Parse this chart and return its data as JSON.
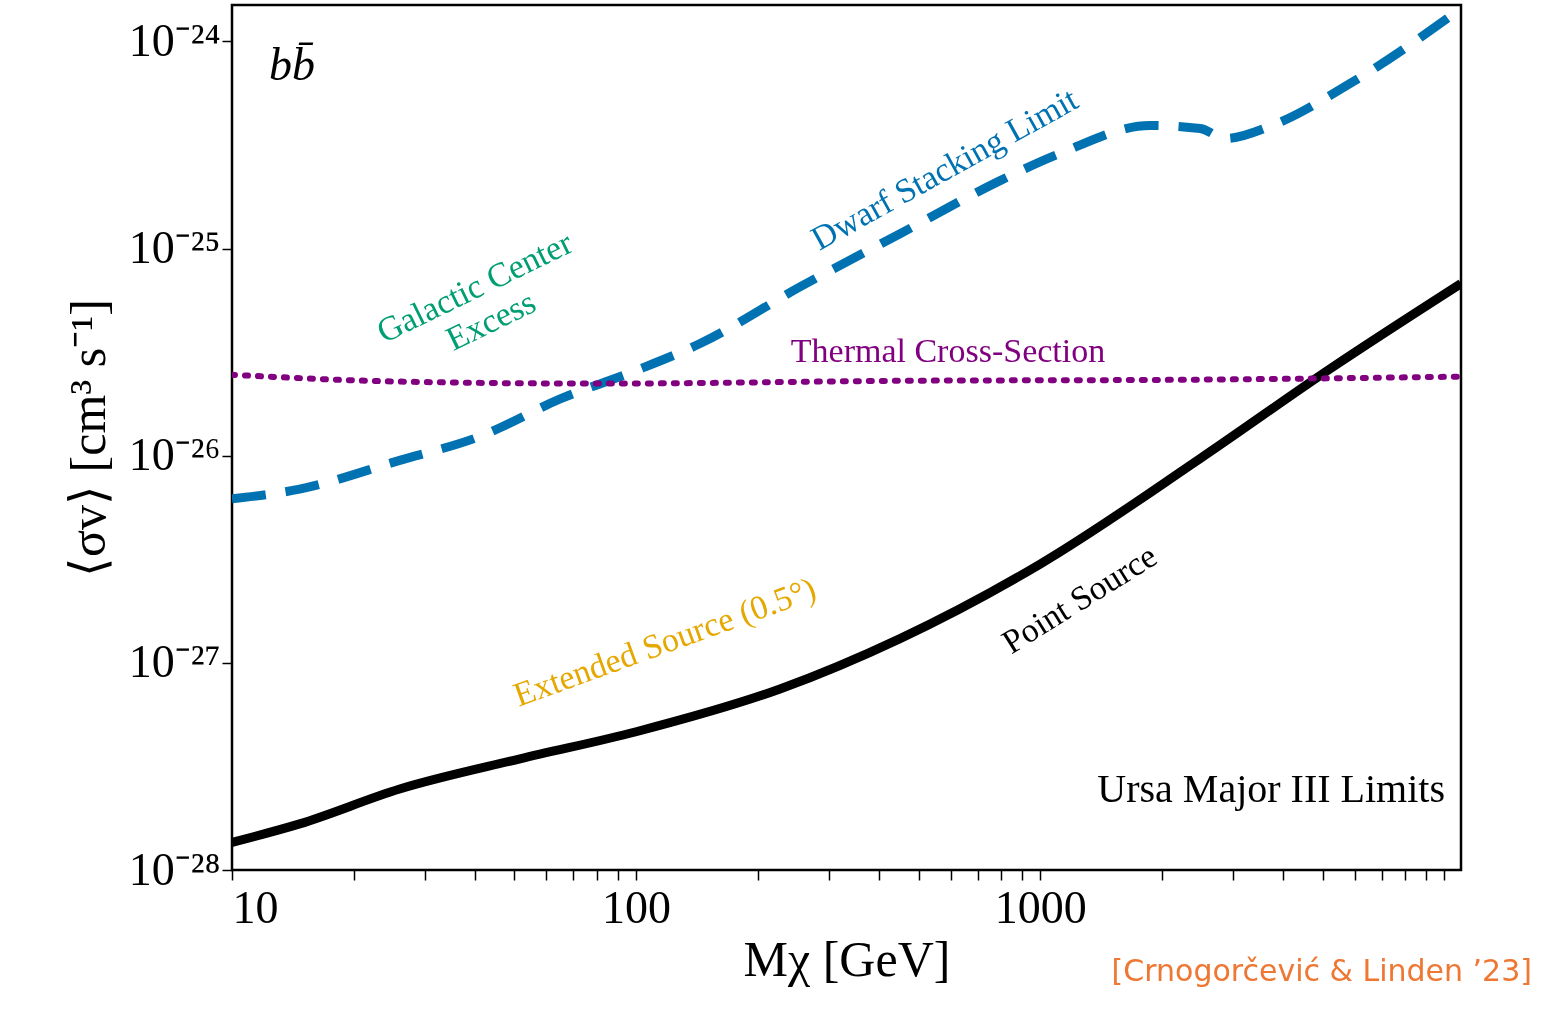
{
  "chart_data": {
    "type": "line",
    "xlabel": "Mχ [GeV]",
    "ylabel": "⟨σv⟩ [cm³ s⁻¹]",
    "log": "xy",
    "grid": false,
    "xlim": [
      10,
      11000
    ],
    "ylim": [
      1e-28,
      1.5e-24
    ],
    "xticks": [
      10,
      {
        "value": 20,
        "label": null
      },
      {
        "value": 30,
        "label": null
      },
      {
        "value": 40,
        "label": null
      },
      {
        "value": 50,
        "label": null
      },
      {
        "value": 60,
        "label": null
      },
      {
        "value": 70,
        "label": null
      },
      {
        "value": 80,
        "label": null
      },
      {
        "value": 90,
        "label": null
      },
      100,
      {
        "value": 200,
        "label": null
      },
      {
        "value": 300,
        "label": null
      },
      {
        "value": 400,
        "label": null
      },
      {
        "value": 500,
        "label": null
      },
      {
        "value": 600,
        "label": null
      },
      {
        "value": 700,
        "label": null
      },
      {
        "value": 800,
        "label": null
      },
      {
        "value": 900,
        "label": null
      },
      1000,
      {
        "value": 2000,
        "label": null
      },
      {
        "value": 3000,
        "label": null
      },
      {
        "value": 4000,
        "label": null
      },
      {
        "value": 5000,
        "label": null
      },
      {
        "value": 6000,
        "label": null
      },
      {
        "value": 7000,
        "label": null
      },
      {
        "value": 8000,
        "label": null
      },
      {
        "value": 9000,
        "label": null
      },
      {
        "value": 10000,
        "label": null
      }
    ],
    "yticks": [
      {
        "value": 1e-28,
        "label": "10⁻²⁸"
      },
      {
        "value": 1e-27,
        "label": "10⁻²⁷"
      },
      {
        "value": 1e-26,
        "label": "10⁻²⁶"
      },
      {
        "value": 1e-25,
        "label": "10⁻²⁵"
      },
      {
        "value": 1e-24,
        "label": "10⁻²⁴"
      }
    ],
    "series": [
      {
        "name": "Point Source",
        "color": "#000000",
        "line_style": "solid",
        "x": [
          10,
          14.7,
          26,
          51.6,
          100,
          227,
          450,
          1000,
          2490,
          5220,
          11000
        ],
        "values": [
          1.36e-28,
          1.67e-28,
          2.46e-28,
          3.44e-28,
          4.65e-28,
          7.48e-28,
          1.31e-27,
          3e-27,
          9.7e-27,
          2.63e-26,
          6.78e-26
        ]
      },
      {
        "name": "Dwarf Stacking Limit",
        "color": "#0072b2",
        "line_style": "dashed",
        "x": [
          10,
          14.7,
          26,
          41.1,
          64.9,
          100,
          144,
          255,
          450,
          796,
          1120,
          1870,
          2490,
          2870,
          3710,
          5850,
          11000
        ],
        "values": [
          6.2e-27,
          6.9e-27,
          9.5e-27,
          1.24e-26,
          1.88e-26,
          2.58e-26,
          3.48e-26,
          6.55e-26,
          1.18e-25,
          2.13e-25,
          2.88e-25,
          3.93e-25,
          3.8e-25,
          3.4e-25,
          3.9e-25,
          6.27e-25,
          1.44e-24
        ]
      },
      {
        "name": "Thermal Cross-Section",
        "color": "#800080",
        "line_style": "dotted",
        "x": [
          10,
          26,
          81.5,
          450,
          2490,
          11000
        ],
        "values": [
          2.46e-26,
          2.28e-26,
          2.23e-26,
          2.3e-26,
          2.33e-26,
          2.41e-26
        ]
      }
    ],
    "annotations": [
      "bb̄",
      "Galactic Center\nExcess",
      "Extended Source (0.5°)",
      "Ursa Major III Limits",
      "[Crnogorčević & Linden ’23]"
    ]
  }
}
